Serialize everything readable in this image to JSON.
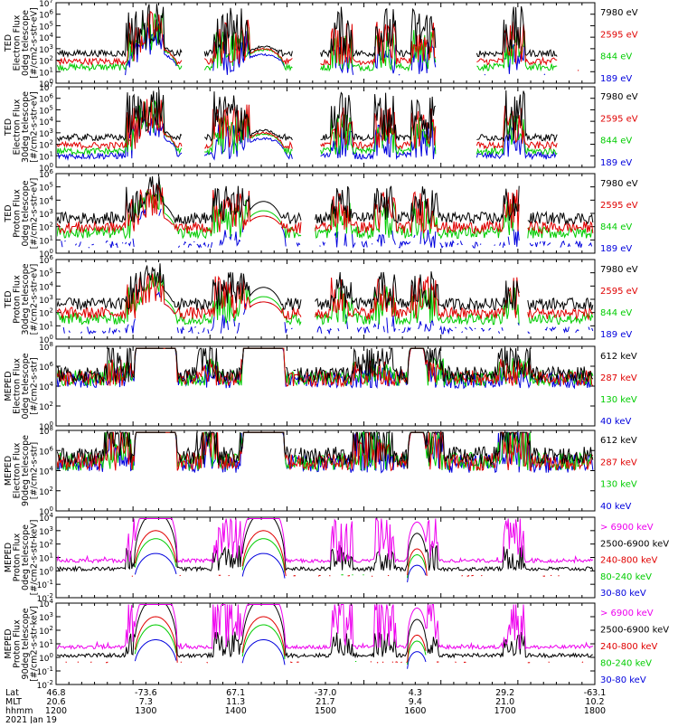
{
  "chart_data": [
    {
      "type": "line",
      "ylabel": [
        "TED",
        "Electron Flux",
        "0deg telescope",
        "[#/cm2-s-str-eV]"
      ],
      "y_log": true,
      "y_ticks": [
        "10^0",
        "10^1",
        "10^2",
        "10^3",
        "10^4",
        "10^5",
        "10^6",
        "10^7"
      ],
      "legend": [
        {
          "name": "7980 eV",
          "color": "#000000"
        },
        {
          "name": "2595 eV",
          "color": "#e00000"
        },
        {
          "name": "844 eV",
          "color": "#00cc00"
        },
        {
          "name": "189 eV",
          "color": "#0000dd"
        }
      ],
      "profile": "ted_e0"
    },
    {
      "type": "line",
      "ylabel": [
        "TED",
        "Electron Flux",
        "30deg telescope",
        "[#/cm2-s-str-eV]"
      ],
      "y_log": true,
      "y_ticks": [
        "10^0",
        "10^1",
        "10^2",
        "10^3",
        "10^4",
        "10^5",
        "10^6",
        "10^7"
      ],
      "legend": [
        {
          "name": "7980 eV",
          "color": "#000000"
        },
        {
          "name": "2595 eV",
          "color": "#e00000"
        },
        {
          "name": "844 eV",
          "color": "#00cc00"
        },
        {
          "name": "189 eV",
          "color": "#0000dd"
        }
      ],
      "profile": "ted_e30"
    },
    {
      "type": "line",
      "ylabel": [
        "TED",
        "Proton Flux",
        "0deg telescope",
        "[#/cm2-s-str-eV]"
      ],
      "y_log": true,
      "y_ticks": [
        "10^0",
        "10^1",
        "10^2",
        "10^3",
        "10^4",
        "10^5",
        "10^6"
      ],
      "legend": [
        {
          "name": "7980 eV",
          "color": "#000000"
        },
        {
          "name": "2595 eV",
          "color": "#e00000"
        },
        {
          "name": "844 eV",
          "color": "#00cc00"
        },
        {
          "name": "189 eV",
          "color": "#0000dd"
        }
      ],
      "profile": "ted_p0"
    },
    {
      "type": "line",
      "ylabel": [
        "TED",
        "Proton Flux",
        "30deg telescope",
        "[#/cm2-s-str-eV]"
      ],
      "y_log": true,
      "y_ticks": [
        "10^0",
        "10^1",
        "10^2",
        "10^3",
        "10^4",
        "10^5",
        "10^6"
      ],
      "legend": [
        {
          "name": "7980 eV",
          "color": "#000000"
        },
        {
          "name": "2595 eV",
          "color": "#e00000"
        },
        {
          "name": "844 eV",
          "color": "#00cc00"
        },
        {
          "name": "189 eV",
          "color": "#0000dd"
        }
      ],
      "profile": "ted_p30"
    },
    {
      "type": "line",
      "ylabel": [
        "MEPED",
        "Electron Flux",
        "0deg telescope",
        "[#/cm2-s-str]"
      ],
      "y_log": true,
      "y_ticks": [
        "10^0",
        "10^2",
        "10^4",
        "10^6",
        "10^8"
      ],
      "legend": [
        {
          "name": "612 keV",
          "color": "#000000"
        },
        {
          "name": "287 keV",
          "color": "#e00000"
        },
        {
          "name": "130 keV",
          "color": "#00cc00"
        },
        {
          "name": "40 keV",
          "color": "#0000dd"
        }
      ],
      "profile": "mep_e0"
    },
    {
      "type": "line",
      "ylabel": [
        "MEPED",
        "Electron Flux",
        "90deg telescope",
        "[#/cm2-s-str]"
      ],
      "y_log": true,
      "y_ticks": [
        "10^0",
        "10^2",
        "10^4",
        "10^6",
        "10^8"
      ],
      "legend": [
        {
          "name": "612 keV",
          "color": "#000000"
        },
        {
          "name": "287 keV",
          "color": "#e00000"
        },
        {
          "name": "130 keV",
          "color": "#00cc00"
        },
        {
          "name": "40 keV",
          "color": "#0000dd"
        }
      ],
      "profile": "mep_e90"
    },
    {
      "type": "line",
      "ylabel": [
        "MEPED",
        "Proton Flux",
        "0deg telescope",
        "[#/cm2-s-str-keV]"
      ],
      "y_log": true,
      "y_ticks": [
        "10^-2",
        "10^-1",
        "10^0",
        "10^1",
        "10^2",
        "10^3",
        "10^4"
      ],
      "legend": [
        {
          "name": "> 6900 keV",
          "color": "#ee00ee"
        },
        {
          "name": "2500-6900 keV",
          "color": "#000000"
        },
        {
          "name": "240-800 keV",
          "color": "#e00000"
        },
        {
          "name": "80-240 keV",
          "color": "#00cc00"
        },
        {
          "name": "30-80 keV",
          "color": "#0000dd"
        }
      ],
      "profile": "mep_p0"
    },
    {
      "type": "line",
      "ylabel": [
        "MEPED",
        "Proton Flux",
        "90deg telescope",
        "[#/cm2-s-str-keV]"
      ],
      "y_log": true,
      "y_ticks": [
        "10^-2",
        "10^-1",
        "10^0",
        "10^1",
        "10^2",
        "10^3",
        "10^4"
      ],
      "legend": [
        {
          "name": "> 6900 keV",
          "color": "#ee00ee"
        },
        {
          "name": "2500-6900 keV",
          "color": "#000000"
        },
        {
          "name": "240-800 keV",
          "color": "#e00000"
        },
        {
          "name": "80-240 keV",
          "color": "#00cc00"
        },
        {
          "name": "30-80 keV",
          "color": "#0000dd"
        }
      ],
      "profile": "mep_p90"
    }
  ],
  "x_axis": {
    "row_labels": [
      "Lat",
      "MLT",
      "hhmm"
    ],
    "date": "2021 Jan 19",
    "ticks": [
      {
        "lat": "46.8",
        "mlt": "20.6",
        "hhmm": "1200"
      },
      {
        "lat": "-73.6",
        "mlt": "7.3",
        "hhmm": "1300"
      },
      {
        "lat": "67.1",
        "mlt": "11.3",
        "hhmm": "1400"
      },
      {
        "lat": "-37.0",
        "mlt": "21.7",
        "hhmm": "1500"
      },
      {
        "lat": "4.3",
        "mlt": "9.4",
        "hhmm": "1600"
      },
      {
        "lat": "29.2",
        "mlt": "21.0",
        "hhmm": "1700"
      },
      {
        "lat": "-63.1",
        "mlt": "10.2",
        "hhmm": "1800"
      }
    ]
  }
}
